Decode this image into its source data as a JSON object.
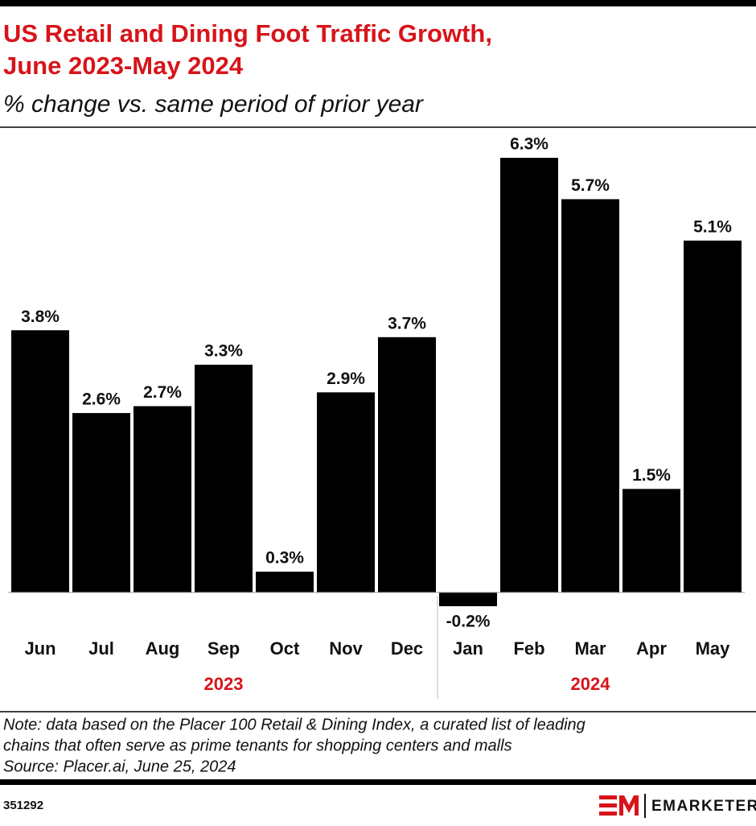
{
  "chart_data": {
    "type": "bar",
    "title": [
      "US Retail and Dining Foot Traffic Growth,",
      "June 2023-May 2024"
    ],
    "subtitle": "% change vs. same period of prior year",
    "groups": [
      {
        "label": "2023",
        "categories": [
          "Jun",
          "Jul",
          "Aug",
          "Sep",
          "Oct",
          "Nov",
          "Dec"
        ]
      },
      {
        "label": "2024",
        "categories": [
          "Jan",
          "Feb",
          "Mar",
          "Apr",
          "May"
        ]
      }
    ],
    "values": [
      3.8,
      2.6,
      2.7,
      3.3,
      0.3,
      2.9,
      3.7,
      -0.2,
      6.3,
      5.7,
      1.5,
      5.1
    ],
    "value_labels": [
      "3.8%",
      "2.6%",
      "2.7%",
      "3.3%",
      "0.3%",
      "2.9%",
      "3.7%",
      "-0.2%",
      "6.3%",
      "5.7%",
      "1.5%",
      "5.1%"
    ],
    "color": "#000000",
    "note": [
      "Note: data based on the Placer 100 Retail & Dining Index, a curated list of leading",
      "chains that often serve as prime tenants for shopping centers and malls",
      "Source: Placer.ai, June 25, 2024"
    ],
    "chart_id": "351292",
    "brand": "EMARKETER"
  }
}
